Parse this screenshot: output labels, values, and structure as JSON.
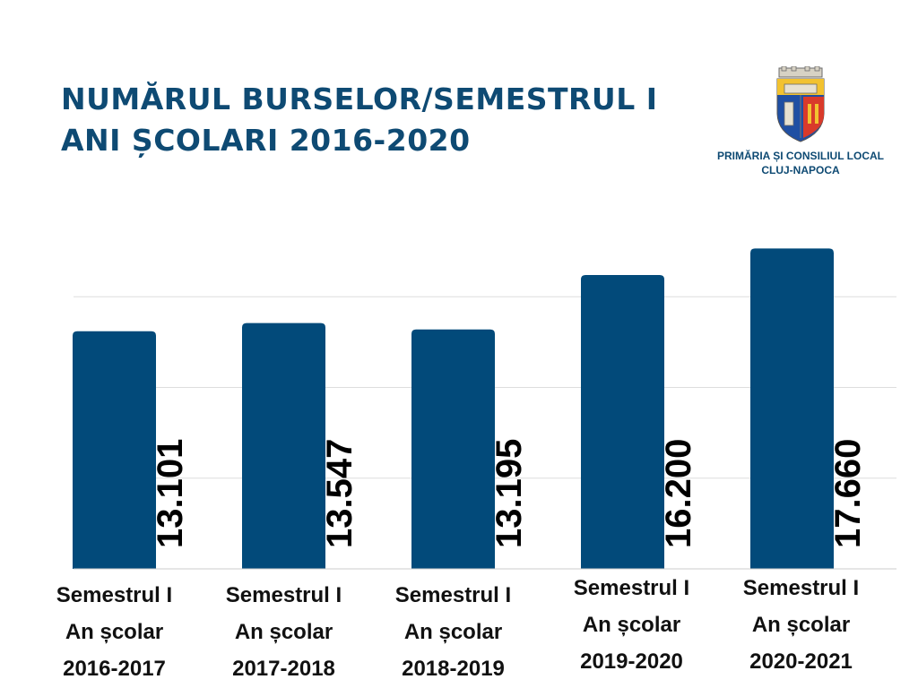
{
  "header": {
    "title_line1": "NUMĂRUL BURSELOR/SEMESTRUL I",
    "title_line2": "ANI ȘCOLARI 2016-2020"
  },
  "logo": {
    "line1": "PRIMĂRIA ȘI CONSILIUL LOCAL",
    "line2": "CLUJ-NAPOCA"
  },
  "colors": {
    "bar": "#024a7a",
    "title": "#0e4a73",
    "grid": "#dddddd",
    "label": "#111111"
  },
  "chart_data": {
    "type": "bar",
    "title": "NUMĂRUL BURSELOR/SEMESTRUL I ANI ȘCOLARI 2016-2020",
    "categories": [
      [
        "Semestrul I",
        "An școlar",
        "2016-2017"
      ],
      [
        "Semestrul I",
        "An școlar",
        "2017-2018"
      ],
      [
        "Semestrul I",
        "An școlar",
        "2018-2019"
      ],
      [
        "Semestrul I",
        "An școlar",
        "2019-2020"
      ],
      [
        "Semestrul I",
        "An școlar",
        "2020-2021"
      ]
    ],
    "values": [
      13101,
      13547,
      13195,
      16200,
      17660
    ],
    "value_labels": [
      "13.101",
      "13.547",
      "13.195",
      "16.200",
      "17.660"
    ],
    "ylim": [
      0,
      20000
    ],
    "gridlines": [
      5000,
      10000,
      15000
    ],
    "xlabel": "",
    "ylabel": "",
    "legend": "none"
  }
}
